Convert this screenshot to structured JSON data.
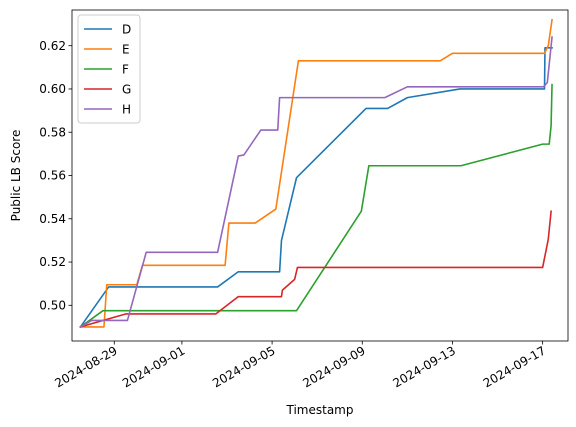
{
  "chart_data": {
    "type": "line",
    "xlabel": "Timestamp",
    "ylabel": "Public LB Score",
    "x_ticks": [
      "2024-08-29",
      "2024-09-01",
      "2024-09-05",
      "2024-09-09",
      "2024-09-13",
      "2024-09-17"
    ],
    "y_ticks": [
      "0.50",
      "0.52",
      "0.54",
      "0.56",
      "0.58",
      "0.60",
      "0.62"
    ],
    "xlim": [
      "2024-08-27T03:00",
      "2024-09-18T03:00"
    ],
    "ylim": [
      0.4835,
      0.6365
    ],
    "legend_position": "upper left",
    "grid": false,
    "series": [
      {
        "name": "D",
        "color": "#1f77b4",
        "points": [
          [
            "2024-08-27T12:00",
            0.49
          ],
          [
            "2024-08-28T18:00",
            0.5085
          ],
          [
            "2024-08-31T00:00",
            0.5085
          ],
          [
            "2024-09-02T14:00",
            0.5085
          ],
          [
            "2024-09-03T12:00",
            0.5155
          ],
          [
            "2024-09-05T08:00",
            0.5155
          ],
          [
            "2024-09-05T10:00",
            0.53
          ],
          [
            "2024-09-06T02:00",
            0.559
          ],
          [
            "2024-09-09T04:00",
            0.591
          ],
          [
            "2024-09-10T03:00",
            0.591
          ],
          [
            "2024-09-11T00:00",
            0.596
          ],
          [
            "2024-09-13T08:00",
            0.6
          ],
          [
            "2024-09-17T02:00",
            0.6
          ],
          [
            "2024-09-17T02:30",
            0.619
          ],
          [
            "2024-09-17T10:00",
            0.619
          ]
        ]
      },
      {
        "name": "E",
        "color": "#ff7f0e",
        "points": [
          [
            "2024-08-27T12:00",
            0.49
          ],
          [
            "2024-08-28T13:00",
            0.49
          ],
          [
            "2024-08-28T16:00",
            0.5095
          ],
          [
            "2024-08-30T00:00",
            0.5095
          ],
          [
            "2024-08-30T06:00",
            0.5185
          ],
          [
            "2024-09-02T22:00",
            0.5185
          ],
          [
            "2024-09-03T02:00",
            0.538
          ],
          [
            "2024-09-04T06:00",
            0.538
          ],
          [
            "2024-09-05T04:00",
            0.5445
          ],
          [
            "2024-09-06T04:00",
            0.613
          ],
          [
            "2024-09-12T11:00",
            0.613
          ],
          [
            "2024-09-13T00:00",
            0.6165
          ],
          [
            "2024-09-17T02:00",
            0.6165
          ],
          [
            "2024-09-17T06:00",
            0.62
          ],
          [
            "2024-09-17T10:00",
            0.632
          ]
        ]
      },
      {
        "name": "F",
        "color": "#2ca02c",
        "points": [
          [
            "2024-08-27T12:00",
            0.49
          ],
          [
            "2024-08-28T12:00",
            0.4975
          ],
          [
            "2024-09-06T02:00",
            0.4975
          ],
          [
            "2024-09-08T23:00",
            0.5435
          ],
          [
            "2024-09-09T07:00",
            0.5645
          ],
          [
            "2024-09-13T09:00",
            0.5645
          ],
          [
            "2024-09-17T00:00",
            0.5745
          ],
          [
            "2024-09-17T07:00",
            0.5745
          ],
          [
            "2024-09-17T09:00",
            0.583
          ],
          [
            "2024-09-17T10:00",
            0.602
          ]
        ]
      },
      {
        "name": "G",
        "color": "#d62728",
        "points": [
          [
            "2024-08-27T12:00",
            0.49
          ],
          [
            "2024-08-29T12:00",
            0.496
          ],
          [
            "2024-09-02T12:00",
            0.496
          ],
          [
            "2024-09-03T12:00",
            0.504
          ],
          [
            "2024-09-05T10:00",
            0.504
          ],
          [
            "2024-09-05T11:00",
            0.507
          ],
          [
            "2024-09-06T00:00",
            0.512
          ],
          [
            "2024-09-06T03:00",
            0.5175
          ],
          [
            "2024-09-17T00:00",
            0.5175
          ],
          [
            "2024-09-17T06:00",
            0.5305
          ],
          [
            "2024-09-17T09:00",
            0.5435
          ]
        ]
      },
      {
        "name": "H",
        "color": "#9467bd",
        "points": [
          [
            "2024-08-27T12:00",
            0.49
          ],
          [
            "2024-08-28T00:00",
            0.493
          ],
          [
            "2024-08-29T14:00",
            0.493
          ],
          [
            "2024-08-30T10:00",
            0.5245
          ],
          [
            "2024-09-02T14:00",
            0.5245
          ],
          [
            "2024-09-03T12:00",
            0.569
          ],
          [
            "2024-09-03T18:00",
            0.5695
          ],
          [
            "2024-09-04T12:00",
            0.581
          ],
          [
            "2024-09-05T06:00",
            0.581
          ],
          [
            "2024-09-05T08:00",
            0.596
          ],
          [
            "2024-09-10T00:00",
            0.596
          ],
          [
            "2024-09-11T00:00",
            0.601
          ],
          [
            "2024-09-17T01:00",
            0.601
          ],
          [
            "2024-09-17T05:00",
            0.603
          ],
          [
            "2024-09-17T10:00",
            0.624
          ]
        ]
      }
    ]
  }
}
